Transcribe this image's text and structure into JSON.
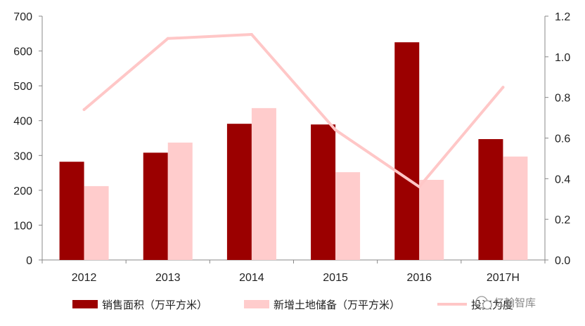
{
  "chart_data": {
    "type": "bar",
    "categories": [
      "2012",
      "2013",
      "2014",
      "2015",
      "2016",
      "2017H"
    ],
    "series": [
      {
        "name": "销售面积（万平方米）",
        "type": "bar",
        "axis": "left",
        "color": "#9B0000",
        "values": [
          282,
          308,
          391,
          389,
          625,
          347
        ]
      },
      {
        "name": "新增土地储备（万平方米）",
        "type": "bar",
        "axis": "left",
        "color": "#FFCCCC",
        "values": [
          212,
          337,
          436,
          252,
          230,
          297
        ]
      },
      {
        "name": "投资力度",
        "type": "line",
        "axis": "right",
        "color": "#FFC7C7",
        "values": [
          0.74,
          1.09,
          1.11,
          0.64,
          0.36,
          0.85
        ]
      }
    ],
    "ylim_left": [
      0,
      700
    ],
    "yticks_left": [
      "0",
      "100",
      "200",
      "300",
      "400",
      "500",
      "600",
      "700"
    ],
    "ylim_right": [
      0,
      1.2
    ],
    "yticks_right": [
      "0.0",
      "0.2",
      "0.4",
      "0.6",
      "0.8",
      "1.0",
      "1.2"
    ],
    "legend_position": "bottom",
    "grid": false
  },
  "watermark": {
    "text": "亿翰智库"
  }
}
